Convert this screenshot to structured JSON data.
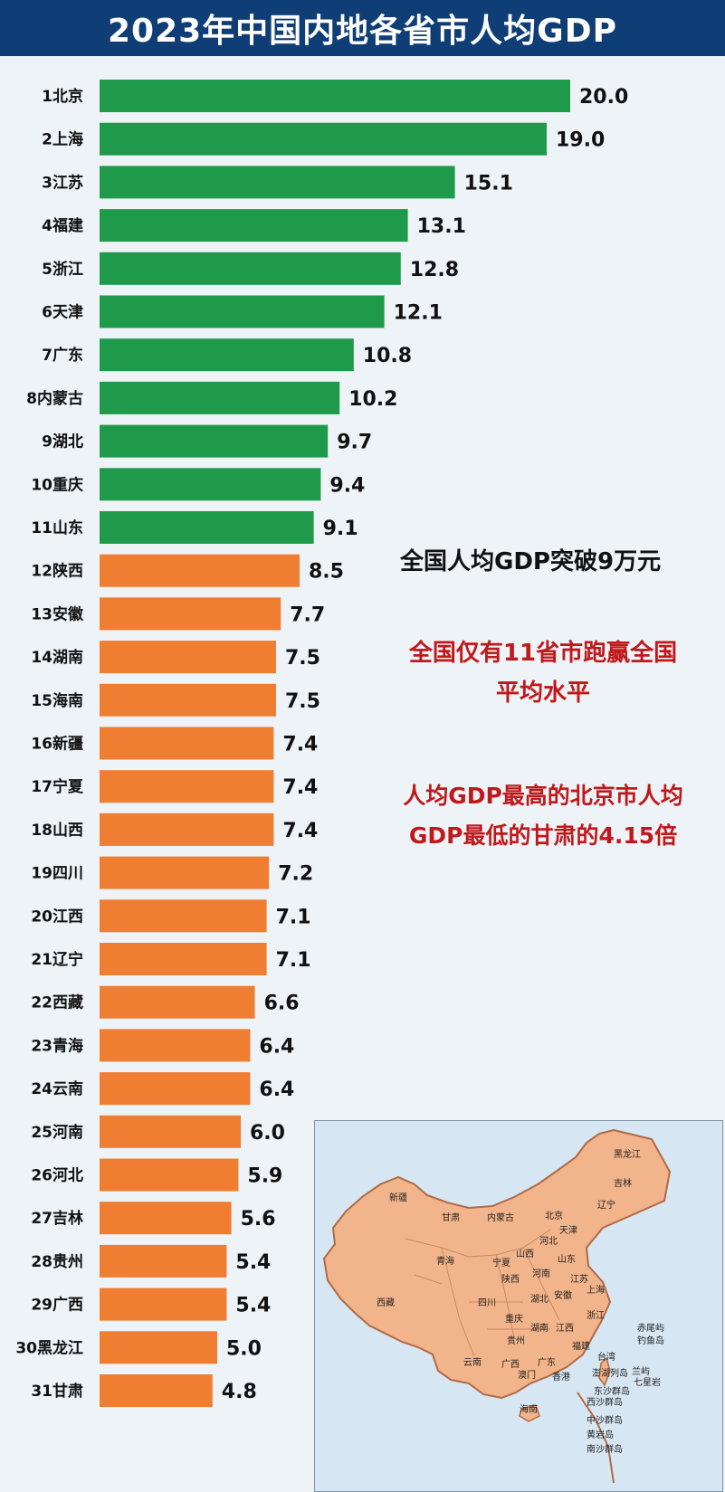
{
  "title": "2023年中国内地各省市人均GDP",
  "chart_data": {
    "type": "bar",
    "orientation": "horizontal",
    "title": "2023年中国内地各省市人均GDP",
    "categories": [
      "北京",
      "上海",
      "江苏",
      "福建",
      "浙江",
      "天津",
      "广东",
      "内蒙古",
      "湖北",
      "重庆",
      "山东",
      "陕西",
      "安徽",
      "湖南",
      "海南",
      "新疆",
      "宁夏",
      "山西",
      "四川",
      "江西",
      "辽宁",
      "西藏",
      "青海",
      "云南",
      "河南",
      "河北",
      "吉林",
      "贵州",
      "广西",
      "黑龙江",
      "甘肃"
    ],
    "values": [
      20.0,
      19.0,
      15.1,
      13.1,
      12.8,
      12.1,
      10.8,
      10.2,
      9.7,
      9.4,
      9.1,
      8.5,
      7.7,
      7.5,
      7.5,
      7.4,
      7.4,
      7.4,
      7.2,
      7.1,
      7.1,
      6.6,
      6.4,
      6.4,
      6.0,
      5.9,
      5.6,
      5.4,
      5.4,
      5.0,
      4.8
    ],
    "value_labels": [
      "20.0",
      "19.0",
      "15.1",
      "13.1",
      "12.8",
      "12.1",
      "10.8",
      "10.2",
      "9.7",
      "9.4",
      "9.1",
      "8.5",
      "7.7",
      "7.5",
      "7.5",
      "7.4",
      "7.4",
      "7.4",
      "7.2",
      "7.1",
      "7.1",
      "6.6",
      "6.4",
      "6.4",
      "6.0",
      "5.9",
      "5.6",
      "5.4",
      "5.4",
      "5.0",
      "4.8"
    ],
    "xlim": [
      0,
      20.0
    ],
    "colors": {
      "above_average": "#1f9a4a",
      "below_average": "#ef7d32"
    },
    "above_average_count": 11,
    "grid": false
  },
  "annotations": {
    "line1": "全国人均GDP突破9万元",
    "line2a": "全国仅有11省市跑赢全国",
    "line2b": "平均水平",
    "line3a": "人均GDP最高的北京市人均",
    "line3b": "GDP最低的甘肃的4.15倍"
  },
  "map": {
    "labels": [
      "黑龙江",
      "吉林",
      "辽宁",
      "新疆",
      "甘肃",
      "内蒙古",
      "北京",
      "天津",
      "河北",
      "山西",
      "山东",
      "青海",
      "宁夏",
      "陕西",
      "河南",
      "江苏",
      "西藏",
      "四川",
      "湖北",
      "安徽",
      "上海",
      "重庆",
      "浙江",
      "湖南",
      "江西",
      "贵州",
      "福建",
      "赤尾屿",
      "钓鱼岛",
      "台湾",
      "云南",
      "广西",
      "广东",
      "澳门",
      "香港",
      "澎湖列岛",
      "兰屿",
      "七星岩",
      "东沙群岛",
      "西沙群岛",
      "海南",
      "中沙群岛",
      "黄岩岛",
      "南沙群岛"
    ],
    "colors": {
      "land": "#f2b48a",
      "border": "#b06a45",
      "sea": "#d6e6f2"
    }
  }
}
